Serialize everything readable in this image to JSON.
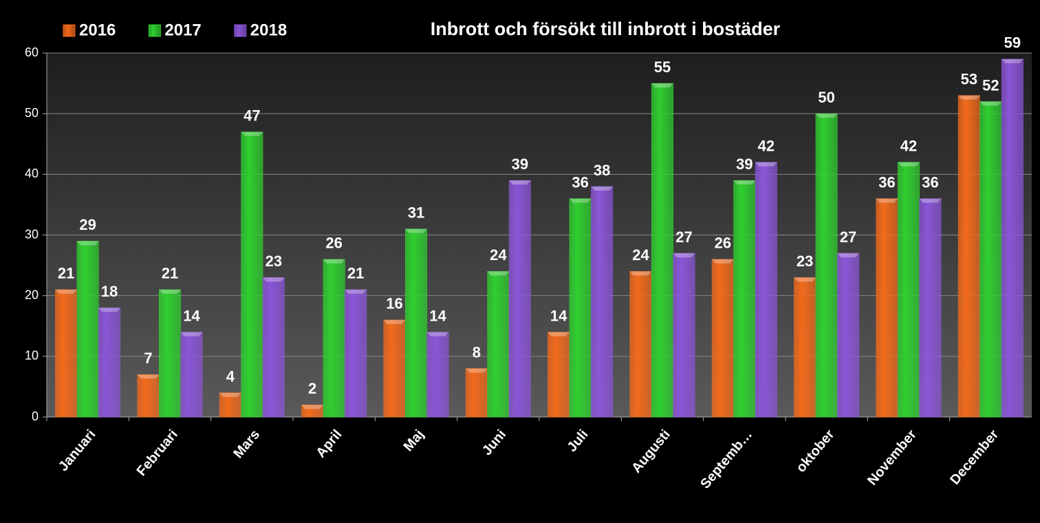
{
  "chart_data": {
    "type": "bar",
    "title": "Inbrott och försökt till inbrott i bostäder",
    "categories": [
      "Januari",
      "Februari",
      "Mars",
      "April",
      "Maj",
      "Juni",
      "Juli",
      "Augusti",
      "Septemb…",
      "oktober",
      "November",
      "December"
    ],
    "series": [
      {
        "name": "2016",
        "color": "#f26a1b",
        "values": [
          21,
          7,
          4,
          2,
          16,
          8,
          14,
          24,
          26,
          23,
          36,
          53
        ]
      },
      {
        "name": "2017",
        "color": "#2fcf2f",
        "values": [
          29,
          21,
          47,
          26,
          31,
          24,
          36,
          55,
          39,
          50,
          42,
          52
        ]
      },
      {
        "name": "2018",
        "color": "#8b55d8",
        "values": [
          18,
          14,
          23,
          21,
          14,
          39,
          38,
          27,
          42,
          27,
          36,
          59
        ]
      }
    ],
    "ylim": [
      0,
      60
    ],
    "yticks": [
      0,
      10,
      20,
      30,
      40,
      50,
      60
    ],
    "grid": true,
    "legend": "top-left"
  }
}
